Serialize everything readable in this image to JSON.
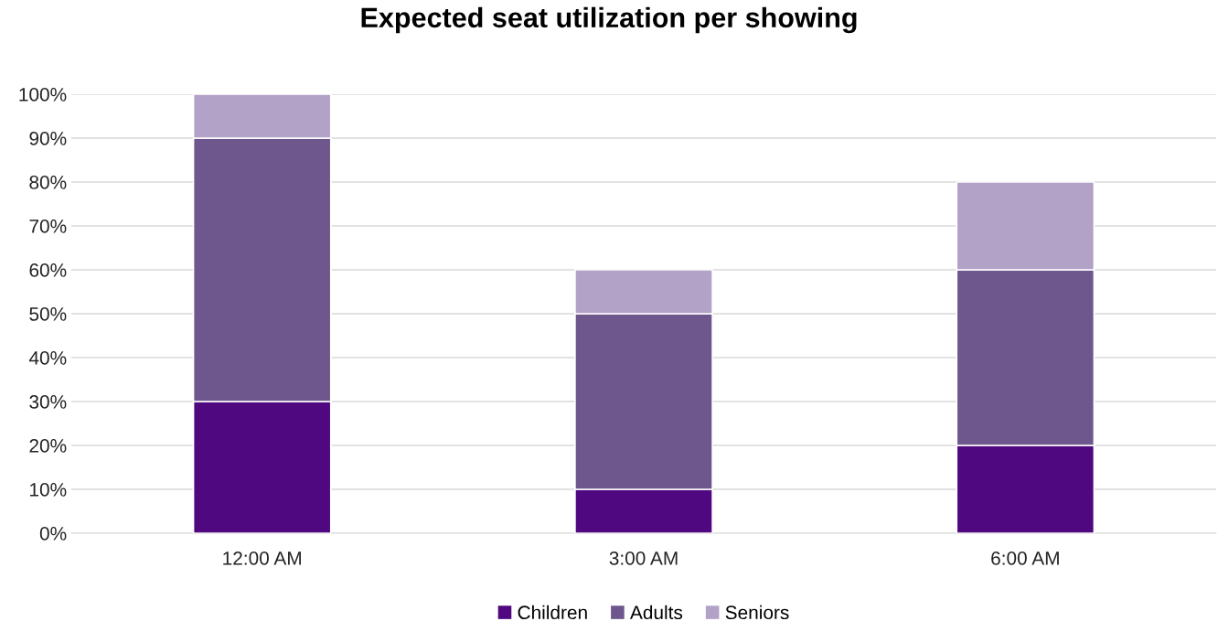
{
  "chart_data": {
    "type": "bar",
    "title": "Expected seat utilization per showing",
    "categories": [
      "12:00 AM",
      "3:00 AM",
      "6:00 AM"
    ],
    "series": [
      {
        "name": "Children",
        "color": "#4f0880",
        "values": [
          30,
          10,
          20
        ]
      },
      {
        "name": "Adults",
        "color": "#6e578c",
        "values": [
          60,
          40,
          40
        ]
      },
      {
        "name": "Seniors",
        "color": "#b3a2c7",
        "values": [
          10,
          10,
          20
        ]
      }
    ],
    "stacked": true,
    "ylim": [
      0,
      100
    ],
    "yticks": [
      {
        "value": 0,
        "label": "0%"
      },
      {
        "value": 10,
        "label": "10%"
      },
      {
        "value": 20,
        "label": "20%"
      },
      {
        "value": 30,
        "label": "30%"
      },
      {
        "value": 40,
        "label": "40%"
      },
      {
        "value": 50,
        "label": "50%"
      },
      {
        "value": 60,
        "label": "60%"
      },
      {
        "value": 70,
        "label": "70%"
      },
      {
        "value": 80,
        "label": "80%"
      },
      {
        "value": 90,
        "label": "90%"
      },
      {
        "value": 100,
        "label": "100%"
      }
    ],
    "grid": "y",
    "legend": "bottom"
  }
}
